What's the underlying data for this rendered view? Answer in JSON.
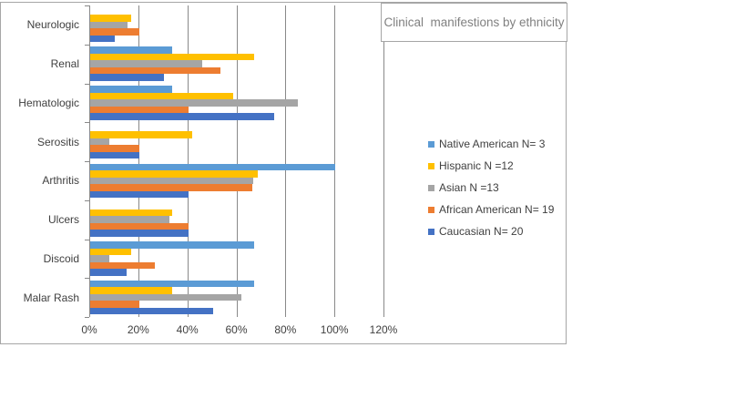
{
  "title": "Clinical  manifestions by ethnicity",
  "chart_data": {
    "type": "bar",
    "orientation": "horizontal",
    "title": "Clinical manifestions by ethnicity",
    "grid": true,
    "legend_position": "right",
    "x_max": 120,
    "x_tick_step": 20,
    "x_tick_labels": [
      "0%",
      "20%",
      "40%",
      "60%",
      "80%",
      "100%",
      "120%"
    ],
    "categories_top_to_bottom": [
      "Neurologic",
      "Renal",
      "Hematologic",
      "Serositis",
      "Arthritis",
      "Ulcers",
      "Discoid",
      "Malar Rash"
    ],
    "value_unit": "percent",
    "series": [
      {
        "name": "Native American N= 3",
        "color": "#5B9BD5",
        "values": [
          0,
          33.3,
          33.3,
          0,
          100,
          0,
          66.7,
          66.7
        ]
      },
      {
        "name": "Hispanic N =12",
        "color": "#FFC000",
        "values": [
          16.7,
          66.7,
          58.3,
          41.7,
          68.5,
          33.3,
          16.7,
          33.3
        ]
      },
      {
        "name": "Asian N =13",
        "color": "#A5A5A5",
        "values": [
          15.4,
          45.8,
          84.6,
          7.7,
          66.5,
          32.3,
          7.7,
          61.5
        ]
      },
      {
        "name": "African American N= 19",
        "color": "#ED7D31",
        "values": [
          20,
          53,
          40,
          20,
          66.3,
          40,
          26.5,
          20
        ]
      },
      {
        "name": "Caucasian N= 20",
        "color": "#4472C4",
        "values": [
          10,
          30,
          75,
          20,
          40,
          40,
          15,
          50
        ]
      }
    ]
  },
  "style_colors": {
    "gridline": "#898989",
    "frame_border": "#A6A6A6",
    "axis_text": "#404040",
    "title_text": "#808080"
  }
}
